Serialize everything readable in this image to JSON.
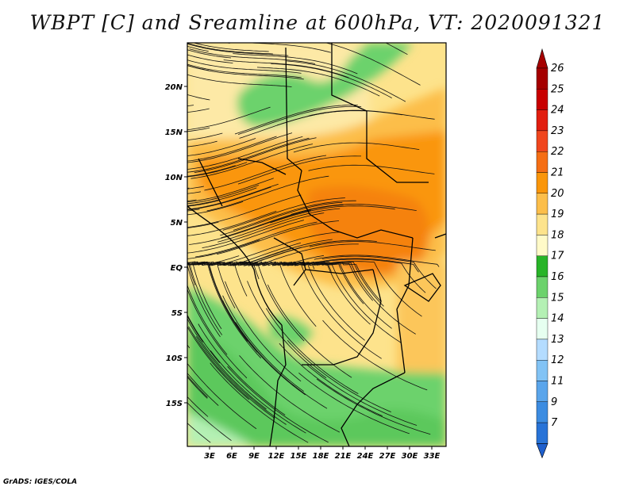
{
  "title": "WBPT [C] and Sreamline at 600hPa, VT: 2020091321",
  "credit": "GrADS: IGES/COLA",
  "map": {
    "lat_labels": [
      "20N",
      "15N",
      "10N",
      "5N",
      "EQ",
      "5S",
      "10S",
      "15S"
    ],
    "lon_labels": [
      "3E",
      "6E",
      "9E",
      "12E",
      "15E",
      "18E",
      "21E",
      "24E",
      "27E",
      "30E",
      "33E"
    ]
  },
  "colorbar": {
    "levels": [
      {
        "label": "26",
        "color": "#a50000"
      },
      {
        "label": "25",
        "color": "#c80000"
      },
      {
        "label": "24",
        "color": "#e11e0f"
      },
      {
        "label": "23",
        "color": "#f0461e"
      },
      {
        "label": "22",
        "color": "#f56e14"
      },
      {
        "label": "21",
        "color": "#fa960a"
      },
      {
        "label": "20",
        "color": "#fcbe4a"
      },
      {
        "label": "19",
        "color": "#fde38c"
      },
      {
        "label": "18",
        "color": "#fffac8"
      },
      {
        "label": "17",
        "color": "#28b428"
      },
      {
        "label": "16",
        "color": "#6cd26c"
      },
      {
        "label": "15",
        "color": "#b4f0b4"
      },
      {
        "label": "14",
        "color": "#e6fff0"
      },
      {
        "label": "13",
        "color": "#b4dcff"
      },
      {
        "label": "12",
        "color": "#82c3f5"
      },
      {
        "label": "11",
        "color": "#5aa5eb"
      },
      {
        "label": "9",
        "color": "#3c8ce1"
      },
      {
        "label": "7",
        "color": "#2873d7"
      }
    ],
    "bottom_color": "#1e5fcd"
  }
}
